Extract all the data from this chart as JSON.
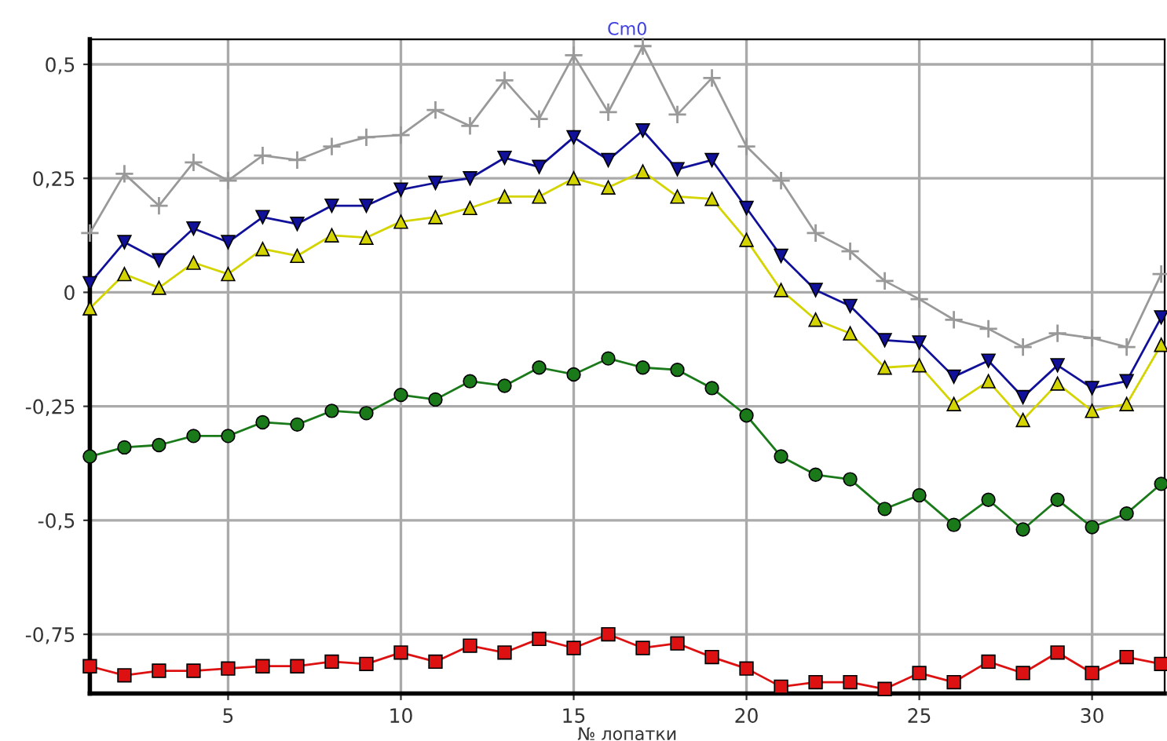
{
  "chart_data": {
    "type": "line",
    "title": "Cm0",
    "xlabel": "№ лопатки",
    "x": [
      1,
      2,
      3,
      4,
      5,
      6,
      7,
      8,
      9,
      10,
      11,
      12,
      13,
      14,
      15,
      16,
      17,
      18,
      19,
      20,
      21,
      22,
      23,
      24,
      25,
      26,
      27,
      28,
      29,
      30,
      31,
      32
    ],
    "xlim": [
      1,
      32.1
    ],
    "xticks": [
      5,
      10,
      15,
      20,
      25,
      30
    ],
    "ylim": [
      -0.88,
      0.555
    ],
    "yticks": [
      {
        "value": 0.5,
        "label": "0,5"
      },
      {
        "value": 0.25,
        "label": "0,25"
      },
      0,
      {
        "value": -0.25,
        "label": "-0,25"
      },
      {
        "value": -0.5,
        "label": "-0,5"
      },
      {
        "value": -0.75,
        "label": "-0,75"
      }
    ],
    "grid": true,
    "legend": false,
    "series": [
      {
        "color": "#999999",
        "marker": "cross",
        "values": [
          0.13,
          0.26,
          0.19,
          0.285,
          0.245,
          0.3,
          0.29,
          0.32,
          0.34,
          0.345,
          0.4,
          0.365,
          0.465,
          0.38,
          0.52,
          0.395,
          0.54,
          0.39,
          0.47,
          0.32,
          0.245,
          0.13,
          0.09,
          0.025,
          -0.015,
          -0.06,
          -0.08,
          -0.12,
          -0.09,
          -0.1,
          -0.12,
          0.04
        ]
      },
      {
        "color": "#10109a",
        "marker": "triangle_down",
        "values": [
          0.02,
          0.11,
          0.07,
          0.14,
          0.11,
          0.165,
          0.15,
          0.19,
          0.19,
          0.225,
          0.24,
          0.25,
          0.295,
          0.275,
          0.34,
          0.29,
          0.355,
          0.27,
          0.29,
          0.185,
          0.08,
          0.005,
          -0.03,
          -0.105,
          -0.11,
          -0.185,
          -0.15,
          -0.23,
          -0.16,
          -0.21,
          -0.195,
          -0.055
        ]
      },
      {
        "color": "#d4d400",
        "marker": "triangle",
        "values": [
          -0.035,
          0.04,
          0.01,
          0.065,
          0.04,
          0.095,
          0.08,
          0.125,
          0.12,
          0.155,
          0.165,
          0.185,
          0.21,
          0.21,
          0.25,
          0.23,
          0.265,
          0.21,
          0.205,
          0.115,
          0.005,
          -0.06,
          -0.09,
          -0.165,
          -0.16,
          -0.245,
          -0.195,
          -0.28,
          -0.2,
          -0.26,
          -0.245,
          -0.115
        ]
      },
      {
        "color": "#1a7a1a",
        "marker": "circle",
        "values": [
          -0.36,
          -0.34,
          -0.335,
          -0.315,
          -0.315,
          -0.285,
          -0.29,
          -0.26,
          -0.265,
          -0.225,
          -0.235,
          -0.195,
          -0.205,
          -0.165,
          -0.18,
          -0.145,
          -0.165,
          -0.17,
          -0.21,
          -0.27,
          -0.36,
          -0.4,
          -0.41,
          -0.475,
          -0.445,
          -0.51,
          -0.455,
          -0.52,
          -0.455,
          -0.515,
          -0.485,
          -0.42
        ]
      },
      {
        "color": "#dd1111",
        "marker": "square",
        "values": [
          -0.82,
          -0.84,
          -0.83,
          -0.83,
          -0.825,
          -0.82,
          -0.82,
          -0.81,
          -0.815,
          -0.79,
          -0.81,
          -0.775,
          -0.79,
          -0.76,
          -0.78,
          -0.75,
          -0.78,
          -0.77,
          -0.8,
          -0.825,
          -0.865,
          -0.855,
          -0.855,
          -0.87,
          -0.835,
          -0.855,
          -0.81,
          -0.835,
          -0.79,
          -0.835,
          -0.8,
          -0.815
        ]
      }
    ]
  }
}
